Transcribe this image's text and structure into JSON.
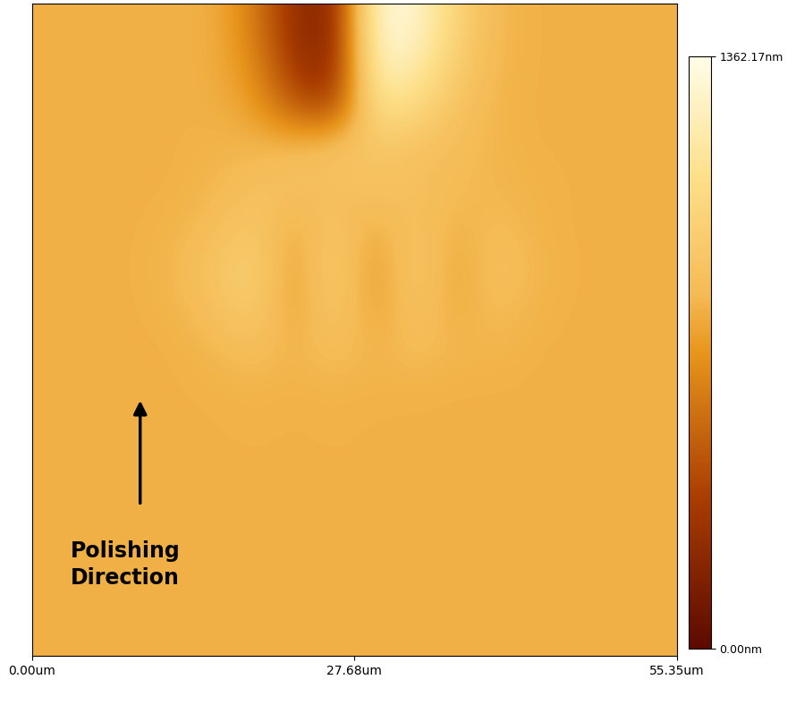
{
  "chart_data": {
    "type": "heatmap",
    "xlim": [
      0,
      55.35
    ],
    "xticks": [
      {
        "value": 0,
        "label": "0.00um"
      },
      {
        "value": 27.68,
        "label": "27.68um"
      },
      {
        "value": 55.35,
        "label": "55.35um"
      }
    ],
    "tick_labels": "x",
    "annotations": [
      "Polishing\nDirection"
    ],
    "colorbar_range": [
      0,
      1362.17
    ],
    "colorbar_ticks": [
      {
        "value": 0,
        "label": "0.00nm"
      },
      {
        "value": 1362.17,
        "label": "1362.17nm"
      }
    ],
    "cells": [
      [
        780,
        780,
        780,
        780,
        780,
        600,
        250,
        180,
        1300,
        1300,
        1000,
        800,
        780,
        780,
        780,
        780
      ],
      [
        780,
        780,
        780,
        780,
        780,
        650,
        300,
        200,
        1250,
        1200,
        950,
        800,
        780,
        780,
        780,
        780
      ],
      [
        780,
        780,
        780,
        780,
        780,
        720,
        450,
        350,
        1100,
        1050,
        880,
        790,
        780,
        780,
        780,
        780
      ],
      [
        780,
        780,
        780,
        780,
        790,
        800,
        820,
        880,
        900,
        880,
        830,
        800,
        780,
        780,
        780,
        780
      ],
      [
        780,
        780,
        780,
        780,
        800,
        850,
        870,
        830,
        880,
        850,
        820,
        800,
        790,
        780,
        780,
        780
      ],
      [
        780,
        780,
        780,
        790,
        830,
        920,
        760,
        900,
        760,
        880,
        780,
        830,
        790,
        780,
        780,
        780
      ],
      [
        780,
        780,
        780,
        800,
        880,
        980,
        700,
        960,
        680,
        930,
        730,
        860,
        800,
        780,
        780,
        780
      ],
      [
        780,
        780,
        780,
        790,
        850,
        940,
        720,
        920,
        720,
        880,
        760,
        830,
        790,
        780,
        780,
        780
      ],
      [
        780,
        780,
        780,
        780,
        800,
        840,
        790,
        840,
        790,
        830,
        800,
        800,
        780,
        780,
        780,
        780
      ],
      [
        780,
        780,
        780,
        780,
        785,
        790,
        785,
        790,
        785,
        785,
        780,
        780,
        780,
        780,
        780,
        780
      ],
      [
        780,
        780,
        780,
        780,
        780,
        785,
        780,
        785,
        780,
        780,
        780,
        780,
        780,
        780,
        780,
        780
      ],
      [
        780,
        780,
        780,
        780,
        780,
        780,
        780,
        780,
        780,
        780,
        780,
        780,
        780,
        780,
        780,
        780
      ],
      [
        780,
        780,
        780,
        780,
        780,
        780,
        780,
        780,
        780,
        780,
        780,
        780,
        780,
        780,
        780,
        780
      ],
      [
        780,
        780,
        780,
        780,
        780,
        780,
        780,
        780,
        780,
        780,
        780,
        780,
        780,
        780,
        780,
        780
      ],
      [
        780,
        780,
        780,
        780,
        780,
        780,
        780,
        780,
        780,
        780,
        780,
        780,
        780,
        780,
        780,
        780
      ],
      [
        780,
        780,
        780,
        780,
        780,
        780,
        780,
        780,
        780,
        780,
        780,
        780,
        780,
        780,
        780,
        780
      ]
    ]
  }
}
